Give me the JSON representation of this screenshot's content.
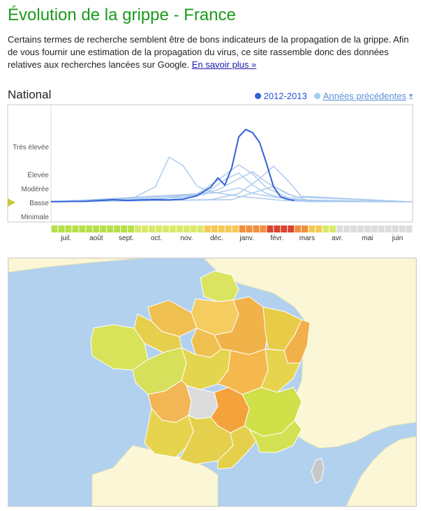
{
  "page": {
    "title": "Évolution de la grippe - France",
    "intro": "Certains termes de recherche semblent être de bons indicateurs de la propagation de la grippe. Afin de vous fournir une estimation de la propagation du virus, ce site rassemble donc des données relatives aux recherches lancées sur Google.",
    "learn_more": "En savoir plus »"
  },
  "national": {
    "title": "National",
    "legend_current": "2012-2013",
    "legend_previous": "Années précédentes",
    "legend_previous_caret": "▾"
  },
  "colors": {
    "current": "#3560d8",
    "previous": "#a9c9ee",
    "title": "#1b9a1b"
  },
  "chart_data": {
    "type": "line",
    "x": [
      "juil.",
      "août",
      "sept.",
      "oct.",
      "nov.",
      "déc.",
      "janv.",
      "févr.",
      "mars",
      "avr.",
      "mai",
      "juin"
    ],
    "y_levels": [
      {
        "label": "Très élevée",
        "value": 4
      },
      {
        "label": "Élevée",
        "value": 3
      },
      {
        "label": "Modérée",
        "value": 2.5
      },
      {
        "label": "Basse",
        "value": 2
      },
      {
        "label": "Minimale",
        "value": 1.5
      }
    ],
    "ylim": [
      1.3,
      5.5
    ],
    "grid": false,
    "legend_position": "top-right",
    "current_level_marker": "Basse",
    "week_axis": [
      "2012-07-01",
      "2013-06-30"
    ],
    "series": [
      {
        "name": "2012-2013",
        "points": [
          [
            "2012-07-01",
            2.03
          ],
          [
            "2012-08-05",
            2.04
          ],
          [
            "2012-09-02",
            2.1
          ],
          [
            "2012-09-16",
            2.07
          ],
          [
            "2012-09-30",
            2.09
          ],
          [
            "2012-10-14",
            2.1
          ],
          [
            "2012-10-28",
            2.09
          ],
          [
            "2012-11-11",
            2.12
          ],
          [
            "2012-11-25",
            2.24
          ],
          [
            "2012-12-09",
            2.55
          ],
          [
            "2012-12-16",
            2.88
          ],
          [
            "2012-12-23",
            2.62
          ],
          [
            "2012-12-30",
            3.25
          ],
          [
            "2013-01-06",
            4.35
          ],
          [
            "2013-01-13",
            4.61
          ],
          [
            "2013-01-20",
            4.5
          ],
          [
            "2013-01-27",
            4.15
          ],
          [
            "2013-02-03",
            3.39
          ],
          [
            "2013-02-10",
            2.56
          ],
          [
            "2013-02-17",
            2.21
          ],
          [
            "2013-02-24",
            2.12
          ],
          [
            "2013-03-03",
            2.07
          ]
        ]
      },
      {
        "points": [
          [
            "2012-07-01",
            2.02
          ],
          [
            "2012-08-12",
            2.06
          ],
          [
            "2012-09-23",
            2.18
          ],
          [
            "2012-10-14",
            2.56
          ],
          [
            "2012-10-28",
            3.62
          ],
          [
            "2012-11-11",
            3.32
          ],
          [
            "2012-11-25",
            2.58
          ],
          [
            "2012-12-09",
            2.38
          ],
          [
            "2013-01-06",
            2.22
          ],
          [
            "2013-02-17",
            2.08
          ],
          [
            "2013-03-17",
            2.03
          ],
          [
            "2013-06-30",
            2.02
          ]
        ]
      },
      {
        "points": [
          [
            "2012-07-01",
            2.02
          ],
          [
            "2012-10-14",
            2.1
          ],
          [
            "2012-11-25",
            2.3
          ],
          [
            "2012-12-16",
            2.8
          ],
          [
            "2013-01-06",
            3.35
          ],
          [
            "2013-01-20",
            3.02
          ],
          [
            "2013-02-03",
            2.52
          ],
          [
            "2013-02-24",
            2.18
          ],
          [
            "2013-03-17",
            2.05
          ],
          [
            "2013-06-30",
            2.02
          ]
        ]
      },
      {
        "points": [
          [
            "2012-07-01",
            2.02
          ],
          [
            "2012-11-11",
            2.18
          ],
          [
            "2012-12-16",
            2.45
          ],
          [
            "2013-01-06",
            2.85
          ],
          [
            "2013-01-20",
            3.1
          ],
          [
            "2013-02-03",
            2.72
          ],
          [
            "2013-02-24",
            2.3
          ],
          [
            "2013-03-17",
            2.07
          ],
          [
            "2013-06-30",
            2.02
          ]
        ]
      },
      {
        "points": [
          [
            "2012-07-01",
            2.02
          ],
          [
            "2012-12-02",
            2.28
          ],
          [
            "2012-12-23",
            2.82
          ],
          [
            "2013-01-06",
            3.05
          ],
          [
            "2013-01-20",
            2.62
          ],
          [
            "2013-02-03",
            2.32
          ],
          [
            "2013-02-24",
            2.1
          ],
          [
            "2013-06-30",
            2.02
          ]
        ]
      },
      {
        "points": [
          [
            "2012-07-01",
            2.02
          ],
          [
            "2012-12-09",
            2.1
          ],
          [
            "2013-01-06",
            2.32
          ],
          [
            "2013-01-27",
            2.85
          ],
          [
            "2013-02-10",
            3.3
          ],
          [
            "2013-02-24",
            2.8
          ],
          [
            "2013-03-10",
            2.22
          ],
          [
            "2013-06-30",
            2.02
          ]
        ]
      },
      {
        "points": [
          [
            "2012-07-01",
            2.02
          ],
          [
            "2012-12-16",
            2.35
          ],
          [
            "2013-01-06",
            2.52
          ],
          [
            "2013-01-20",
            2.32
          ],
          [
            "2013-02-10",
            2.2
          ],
          [
            "2013-03-03",
            2.08
          ],
          [
            "2013-06-30",
            2.02
          ]
        ]
      },
      {
        "points": [
          [
            "2012-07-01",
            2.02
          ],
          [
            "2012-12-30",
            2.1
          ],
          [
            "2013-01-27",
            2.42
          ],
          [
            "2013-02-10",
            2.58
          ],
          [
            "2013-03-03",
            2.2
          ],
          [
            "2013-06-30",
            2.02
          ]
        ]
      }
    ],
    "intensity_scale": {
      "colors": {
        "minimal": "#b7e04a",
        "low": "#dbe96a",
        "moderate": "#f4c956",
        "high": "#f0903e",
        "very_high": "#d84430",
        "none": "#dddddd"
      },
      "weeks": [
        "minimal",
        "minimal",
        "minimal",
        "minimal",
        "minimal",
        "minimal",
        "minimal",
        "minimal",
        "minimal",
        "minimal",
        "minimal",
        "minimal",
        "low",
        "low",
        "low",
        "low",
        "low",
        "low",
        "low",
        "low",
        "low",
        "low",
        "moderate",
        "moderate",
        "moderate",
        "moderate",
        "moderate",
        "high",
        "high",
        "high",
        "high",
        "very_high",
        "very_high",
        "very_high",
        "very_high",
        "high",
        "high",
        "moderate",
        "moderate",
        "low",
        "low",
        "none",
        "none",
        "none",
        "none",
        "none",
        "none",
        "none",
        "none",
        "none",
        "none",
        "none"
      ]
    }
  },
  "map": {
    "colors": {
      "sea": "#b2d1ef",
      "land": "#fbf7d6",
      "border": "#e4dfb8",
      "no_data": "#dcdcdc"
    },
    "regions": [
      {
        "name": "Nord-Pas-de-Calais",
        "level": "low",
        "fill": "#dae460"
      },
      {
        "name": "Picardie",
        "level": "moderate",
        "fill": "#f4cc60"
      },
      {
        "name": "Haute-Normandie",
        "level": "moderate",
        "fill": "#efc050"
      },
      {
        "name": "Basse-Normandie",
        "level": "moderate",
        "fill": "#e6cf4c"
      },
      {
        "name": "Bretagne",
        "level": "low",
        "fill": "#d8e35a"
      },
      {
        "name": "Île-de-France",
        "level": "moderate",
        "fill": "#efc050"
      },
      {
        "name": "Champagne-Ardenne",
        "level": "high",
        "fill": "#f2b24a"
      },
      {
        "name": "Lorraine",
        "level": "moderate",
        "fill": "#e8cc48"
      },
      {
        "name": "Alsace",
        "level": "high",
        "fill": "#f2b04a"
      },
      {
        "name": "Pays de la Loire",
        "level": "low",
        "fill": "#d6e05a"
      },
      {
        "name": "Centre",
        "level": "moderate",
        "fill": "#e4d54e"
      },
      {
        "name": "Bourgogne",
        "level": "high",
        "fill": "#f4b84c"
      },
      {
        "name": "Franche-Comté",
        "level": "moderate",
        "fill": "#e6d44e"
      },
      {
        "name": "Poitou-Charentes",
        "level": "high",
        "fill": "#f2b654"
      },
      {
        "name": "Limousin",
        "level": "none",
        "fill": "#dcdcdc"
      },
      {
        "name": "Auvergne",
        "level": "high",
        "fill": "#f4a23c"
      },
      {
        "name": "Rhône-Alpes",
        "level": "minimal",
        "fill": "#cfe048"
      },
      {
        "name": "Aquitaine",
        "level": "moderate",
        "fill": "#e6d44e"
      },
      {
        "name": "Midi-Pyrénées",
        "level": "moderate",
        "fill": "#e4d04c"
      },
      {
        "name": "Languedoc-Roussillon",
        "level": "moderate",
        "fill": "#e4d04c"
      },
      {
        "name": "Provence-Alpes-Côte d'Azur",
        "level": "minimal",
        "fill": "#d4e152"
      },
      {
        "name": "Corse",
        "level": "none",
        "fill": "#c8c8c8"
      }
    ]
  }
}
